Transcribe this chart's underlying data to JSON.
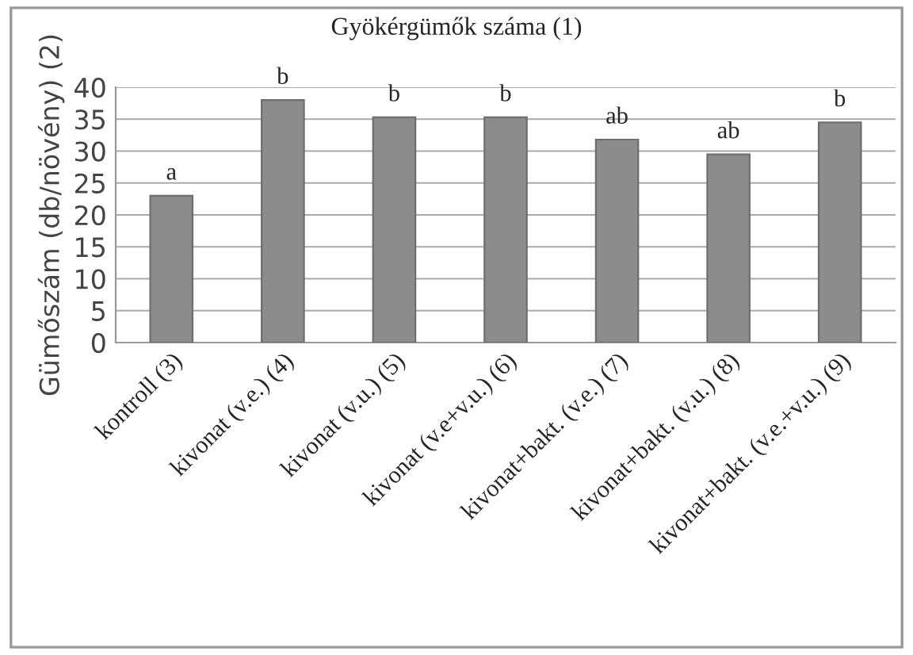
{
  "chart_data": {
    "type": "bar",
    "title": "Gyökérgümők száma (1)",
    "ylabel": "Gümőszám (db/növény) (2)",
    "categories": [
      "kontroll (3)",
      "kivonat (v.e.) (4)",
      "kivonat (v.u.) (5)",
      "kivonat (v.e+v.u.) (6)",
      "kivonat+bakt. (v.e.) (7)",
      "kivonat+bakt. (v.u.) (8)",
      "kivonat+bakt. (v.e.+v.u.) (9)"
    ],
    "values": [
      23,
      38,
      35.3,
      35.3,
      31.8,
      29.5,
      34.5
    ],
    "color": "#8c8c8c",
    "ylim": [
      0,
      40
    ],
    "yticks": [
      0,
      5,
      10,
      15,
      20,
      25,
      30,
      35,
      40
    ],
    "grid": "y",
    "legend": false,
    "annotations": [
      {
        "text": "a",
        "x": "kontroll (3)",
        "y": 23
      },
      {
        "text": "b",
        "x": "kivonat (v.e.) (4)",
        "y": 38
      },
      {
        "text": "b",
        "x": "kivonat (v.u.) (5)",
        "y": 35.3
      },
      {
        "text": "b",
        "x": "kivonat (v.e+v.u.) (6)",
        "y": 35.3
      },
      {
        "text": "ab",
        "x": "kivonat+bakt. (v.e.) (7)",
        "y": 31.8
      },
      {
        "text": "ab",
        "x": "kivonat+bakt. (v.u.) (8)",
        "y": 29.5
      },
      {
        "text": "b",
        "x": "kivonat+bakt. (v.e.+v.u.) (9)",
        "y": 34.5
      }
    ]
  }
}
